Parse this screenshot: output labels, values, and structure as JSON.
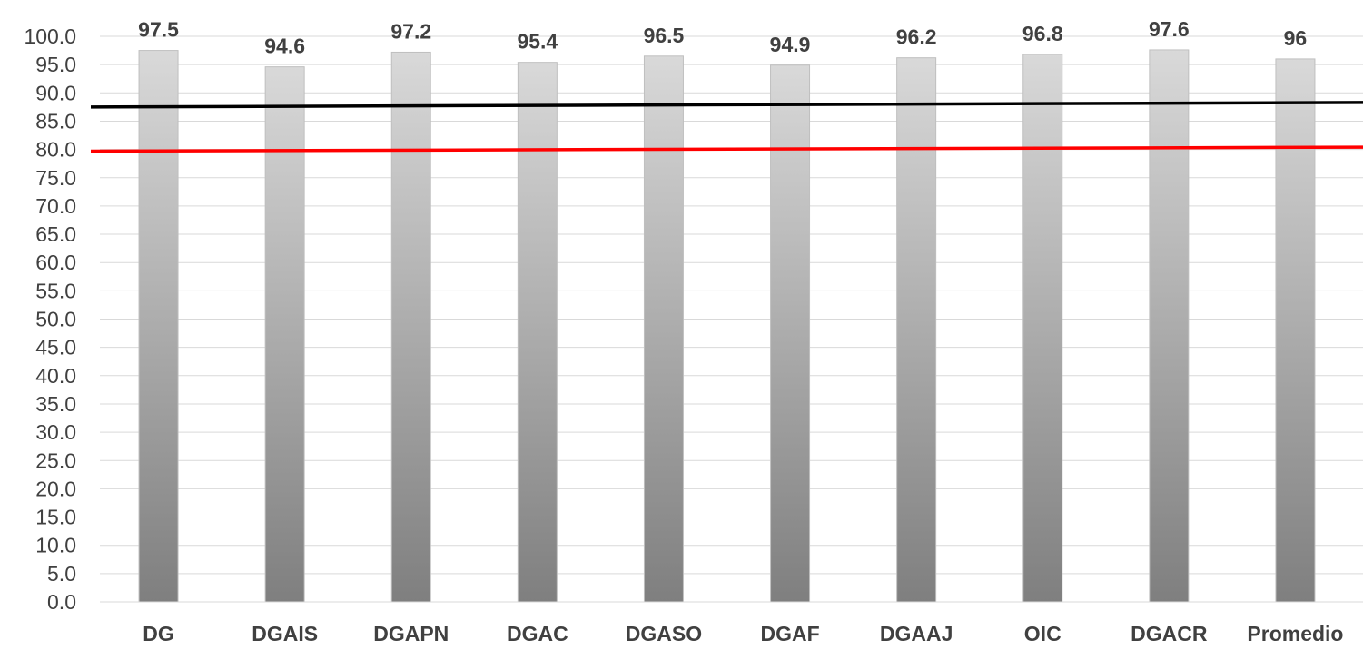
{
  "chart_data": {
    "type": "bar",
    "categories": [
      "DG",
      "DGAIS",
      "DGAPN",
      "DGAC",
      "DGASO",
      "DGAF",
      "DGAAJ",
      "OIC",
      "DGACR",
      "Promedio"
    ],
    "values": [
      97.5,
      94.6,
      97.2,
      95.4,
      96.5,
      94.9,
      96.2,
      96.8,
      97.6,
      96
    ],
    "data_labels": [
      "97.5",
      "94.6",
      "97.2",
      "95.4",
      "96.5",
      "94.9",
      "96.2",
      "96.8",
      "97.6",
      "96"
    ],
    "ylim": [
      0,
      100
    ],
    "y_tick_step": 5,
    "y_tick_labels": [
      "0.0",
      "5.0",
      "10.0",
      "15.0",
      "20.0",
      "25.0",
      "30.0",
      "35.0",
      "40.0",
      "45.0",
      "50.0",
      "55.0",
      "60.0",
      "65.0",
      "70.0",
      "75.0",
      "80.0",
      "85.0",
      "90.0",
      "95.0",
      "100.0"
    ],
    "grid": true,
    "legend": "none",
    "reference_lines": [
      {
        "color": "#000000",
        "y_start": 87.5,
        "y_end": 88.3
      },
      {
        "color": "#ff0000",
        "y_start": 79.7,
        "y_end": 80.4
      }
    ],
    "colors": {
      "bar_top": "#d9d9d9",
      "bar_bottom": "#7f7f7f",
      "bar_border": "#bfbfbf",
      "grid": "#d9d9d9",
      "text": "#404040"
    }
  }
}
